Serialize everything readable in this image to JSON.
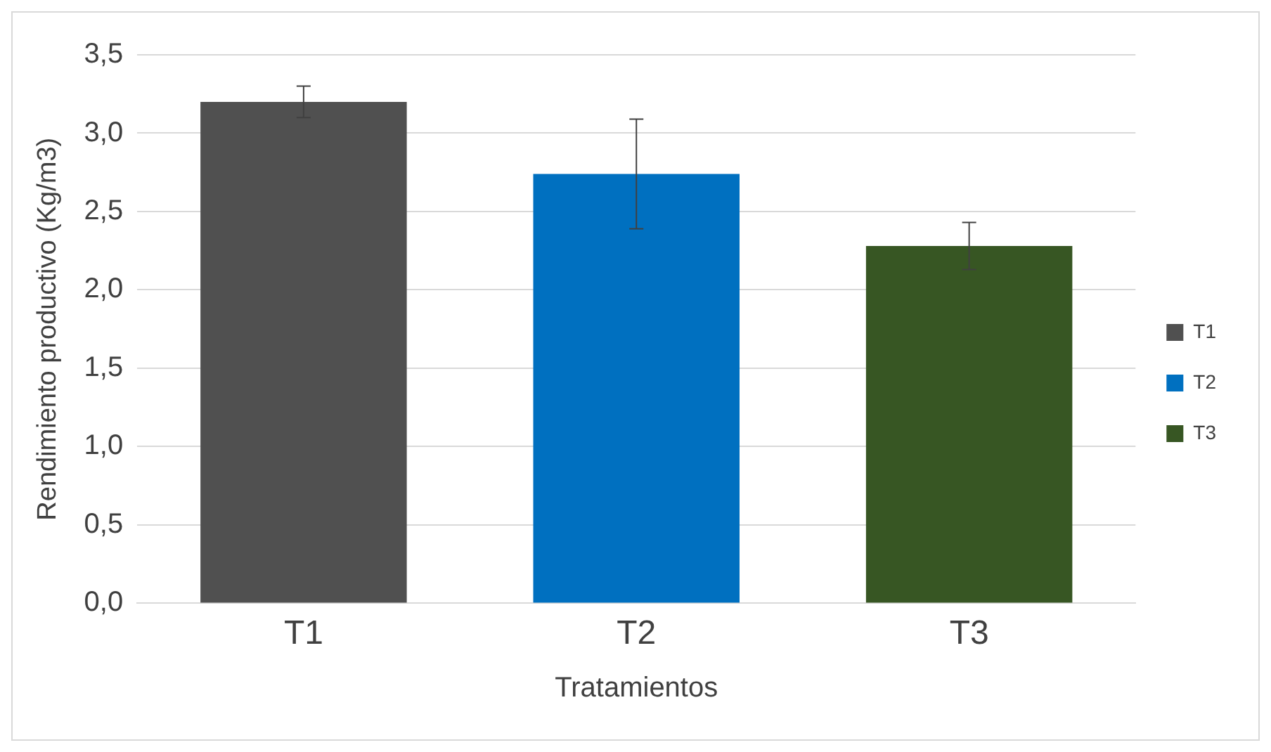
{
  "chart_data": {
    "type": "bar",
    "xlabel": "Tratamientos",
    "ylabel": "Rendimiento productivo (Kg/m3)",
    "categories": [
      "T1",
      "T2",
      "T3"
    ],
    "series": [
      {
        "name": "T1",
        "color": "#505050",
        "values": [
          3.2,
          null,
          null
        ],
        "errors": [
          0.1,
          null,
          null
        ]
      },
      {
        "name": "T2",
        "color": "#0070c0",
        "values": [
          null,
          2.74,
          null
        ],
        "errors": [
          null,
          0.35,
          null
        ]
      },
      {
        "name": "T3",
        "color": "#375623",
        "values": [
          null,
          null,
          2.28
        ],
        "errors": [
          null,
          null,
          0.15
        ]
      }
    ],
    "ylim": [
      0,
      3.5
    ],
    "yticks": [
      {
        "value": 0,
        "label": "0,0"
      },
      {
        "value": 0.5,
        "label": "0,5"
      },
      {
        "value": 1,
        "label": "1,0"
      },
      {
        "value": 1.5,
        "label": "1,5"
      },
      {
        "value": 2,
        "label": "2,0"
      },
      {
        "value": 2.5,
        "label": "2,5"
      },
      {
        "value": 3,
        "label": "3,0"
      },
      {
        "value": 3.5,
        "label": "3,5"
      }
    ],
    "grid": "y",
    "legend": "right"
  }
}
